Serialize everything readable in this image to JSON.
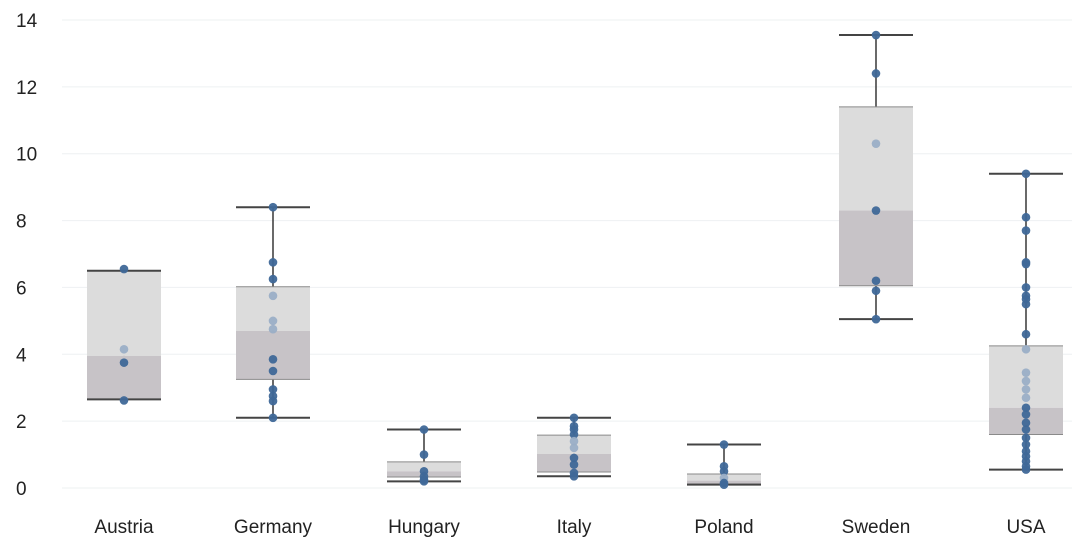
{
  "chart_data": {
    "type": "box",
    "title": "",
    "xlabel": "",
    "ylabel": "",
    "ylim": [
      -0.6,
      14.2
    ],
    "yticks": [
      0,
      2,
      4,
      6,
      8,
      10,
      12,
      14
    ],
    "grid": "horizontal",
    "colors": {
      "box_upper": "#dcdcdc",
      "box_lower": "#c7c3c7",
      "whisker": "#444444",
      "point_dark": "#3f6898",
      "point_light": "#9aaec6",
      "gridline": "#eef0f2"
    },
    "categories": [
      "Austria",
      "Germany",
      "Hungary",
      "Italy",
      "Poland",
      "Sweden",
      "USA"
    ],
    "boxes": [
      {
        "category": "Austria",
        "min": 2.65,
        "q1": 2.65,
        "median": 3.95,
        "q3": 6.5,
        "max": 6.5,
        "points": [
          6.55,
          4.15,
          3.75,
          2.62
        ]
      },
      {
        "category": "Germany",
        "min": 2.1,
        "q1": 3.25,
        "median": 4.7,
        "q3": 6.02,
        "max": 8.4,
        "points": [
          8.4,
          6.75,
          6.25,
          5.75,
          5.0,
          4.75,
          3.85,
          3.5,
          2.95,
          2.75,
          2.6,
          2.1
        ]
      },
      {
        "category": "Hungary",
        "min": 0.2,
        "q1": 0.33,
        "median": 0.5,
        "q3": 0.78,
        "max": 1.75,
        "points": [
          1.75,
          1.0,
          0.5,
          0.35,
          0.25,
          0.2
        ]
      },
      {
        "category": "Italy",
        "min": 0.35,
        "q1": 0.48,
        "median": 1.02,
        "q3": 1.58,
        "max": 2.1,
        "points": [
          2.1,
          1.85,
          1.75,
          1.6,
          1.4,
          1.2,
          0.9,
          0.7,
          0.45,
          0.35
        ]
      },
      {
        "category": "Poland",
        "min": 0.1,
        "q1": 0.12,
        "median": 0.22,
        "q3": 0.42,
        "max": 1.3,
        "points": [
          1.3,
          0.65,
          0.5,
          0.3,
          0.15,
          0.1
        ]
      },
      {
        "category": "Sweden",
        "min": 5.05,
        "q1": 6.05,
        "median": 8.3,
        "q3": 11.4,
        "max": 13.55,
        "points": [
          13.55,
          12.4,
          10.3,
          8.3,
          6.2,
          5.9,
          5.05
        ]
      },
      {
        "category": "USA",
        "min": 0.55,
        "q1": 1.6,
        "median": 2.4,
        "q3": 4.25,
        "max": 9.4,
        "points": [
          9.4,
          8.1,
          7.7,
          6.75,
          6.7,
          6.0,
          5.75,
          5.65,
          5.5,
          4.6,
          4.15,
          3.45,
          3.2,
          2.95,
          2.7,
          2.4,
          2.2,
          1.95,
          1.75,
          1.5,
          1.3,
          1.1,
          0.95,
          0.8,
          0.65,
          0.55
        ]
      }
    ]
  }
}
